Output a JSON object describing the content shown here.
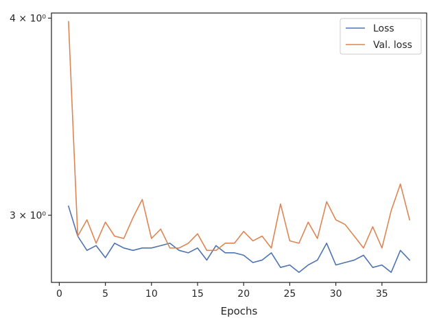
{
  "chart_data": {
    "type": "line",
    "title": "",
    "xlabel": "Epochs",
    "ylabel": "",
    "yscale": "log",
    "xlim": [
      -0.85,
      39.85
    ],
    "ylim": [
      2.72,
      4.03
    ],
    "xticks": [
      0,
      5,
      10,
      15,
      20,
      25,
      30,
      35
    ],
    "xtick_labels": [
      "0",
      "5",
      "10",
      "15",
      "20",
      "25",
      "30",
      "35"
    ],
    "yticks": [
      3,
      4
    ],
    "ytick_labels": [
      "3 × 10⁰",
      "4 × 10⁰"
    ],
    "grid": false,
    "legend_position": "top-right",
    "x": [
      1,
      2,
      3,
      4,
      5,
      6,
      7,
      8,
      9,
      10,
      11,
      12,
      13,
      14,
      15,
      16,
      17,
      18,
      19,
      20,
      21,
      22,
      23,
      24,
      25,
      26,
      27,
      28,
      29,
      30,
      31,
      32,
      33,
      34,
      35,
      36,
      37,
      38
    ],
    "series": [
      {
        "name": "Loss",
        "color": "#4c72b0",
        "values": [
          3.04,
          2.91,
          2.85,
          2.87,
          2.82,
          2.88,
          2.86,
          2.85,
          2.86,
          2.86,
          2.87,
          2.88,
          2.85,
          2.84,
          2.86,
          2.81,
          2.87,
          2.84,
          2.84,
          2.83,
          2.8,
          2.81,
          2.84,
          2.78,
          2.79,
          2.76,
          2.79,
          2.81,
          2.88,
          2.79,
          2.8,
          2.81,
          2.83,
          2.78,
          2.79,
          2.76,
          2.85,
          2.81
        ]
      },
      {
        "name": "Val. loss",
        "color": "#dd8452",
        "values": [
          3.98,
          2.91,
          2.98,
          2.88,
          2.97,
          2.91,
          2.9,
          2.99,
          3.07,
          2.9,
          2.94,
          2.86,
          2.86,
          2.88,
          2.92,
          2.85,
          2.85,
          2.88,
          2.88,
          2.93,
          2.89,
          2.91,
          2.86,
          3.05,
          2.89,
          2.88,
          2.97,
          2.9,
          3.06,
          2.98,
          2.96,
          2.91,
          2.86,
          2.95,
          2.86,
          3.02,
          3.14,
          2.98
        ]
      }
    ]
  }
}
